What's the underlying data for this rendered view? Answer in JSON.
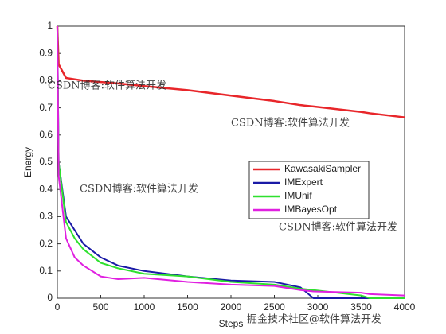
{
  "chart_data": {
    "type": "line",
    "xlabel": "Steps",
    "ylabel": "Energy",
    "x": [
      0,
      15,
      100,
      200,
      300,
      500,
      700,
      1000,
      1500,
      2000,
      2500,
      2800,
      2950,
      3500,
      3600,
      4000
    ],
    "series": [
      {
        "name": "KawasakiSampler",
        "color": "#e8262a",
        "values": [
          1,
          0.86,
          0.81,
          0.805,
          0.8,
          0.795,
          0.79,
          0.78,
          0.765,
          0.745,
          0.725,
          0.71,
          0.705,
          0.685,
          0.68,
          0.665
        ]
      },
      {
        "name": "IMExpert",
        "color": "#1a1aa6",
        "values": [
          1,
          0.5,
          0.3,
          0.25,
          0.2,
          0.15,
          0.12,
          0.1,
          0.08,
          0.065,
          0.06,
          0.04,
          0,
          0,
          0,
          0
        ]
      },
      {
        "name": "IMUnif",
        "color": "#2ee02e",
        "values": [
          1,
          0.5,
          0.28,
          0.22,
          0.18,
          0.13,
          0.11,
          0.09,
          0.08,
          0.06,
          0.05,
          0.035,
          0.03,
          0.01,
          0,
          0
        ]
      },
      {
        "name": "IMBayesOpt",
        "color": "#e020e0",
        "values": [
          1,
          0.45,
          0.22,
          0.15,
          0.12,
          0.08,
          0.07,
          0.075,
          0.06,
          0.05,
          0.045,
          0.03,
          0.025,
          0.02,
          0.015,
          0.01
        ]
      }
    ],
    "xlim": [
      0,
      4000
    ],
    "xticks": [
      0,
      500,
      1000,
      1500,
      2000,
      2500,
      3000,
      3500,
      4000
    ],
    "ylim": [
      0,
      1
    ],
    "yticks": [
      0,
      0.1,
      0.2,
      0.3,
      0.4,
      0.5,
      0.6,
      0.7,
      0.8,
      0.9,
      1
    ],
    "legend": "upper right",
    "annotations": [
      "CSDN博客:软件算法开发",
      "CSDN博客:软件算法开发",
      "CSDN博客:软件算法开发",
      "CSDN博客:软件算法开发",
      "掘金技术社区@软件算法开发"
    ]
  }
}
